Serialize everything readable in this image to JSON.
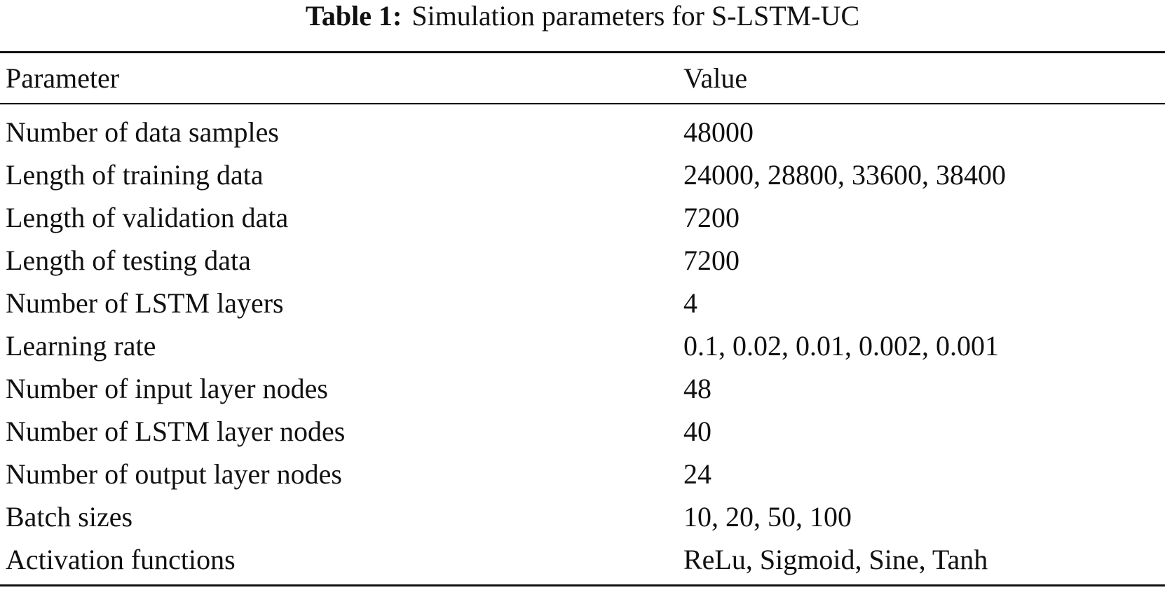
{
  "caption": {
    "label": "Table 1:",
    "text": "Simulation parameters for S-LSTM-UC"
  },
  "table": {
    "header": [
      "Parameter",
      "Value"
    ],
    "rows": [
      [
        "Number of data samples",
        "48000"
      ],
      [
        "Length of training data",
        "24000, 28800, 33600, 38400"
      ],
      [
        "Length of validation data",
        "7200"
      ],
      [
        "Length of testing data",
        "7200"
      ],
      [
        "Number of LSTM layers",
        "4"
      ],
      [
        "Learning rate",
        "0.1, 0.02, 0.01, 0.002, 0.001"
      ],
      [
        "Number of input layer nodes",
        "48"
      ],
      [
        "Number of LSTM layer nodes",
        "40"
      ],
      [
        "Number of output layer nodes",
        "24"
      ],
      [
        "Batch sizes",
        "10, 20, 50, 100"
      ],
      [
        "Activation functions",
        "ReLu, Sigmoid, Sine, Tanh"
      ]
    ]
  }
}
